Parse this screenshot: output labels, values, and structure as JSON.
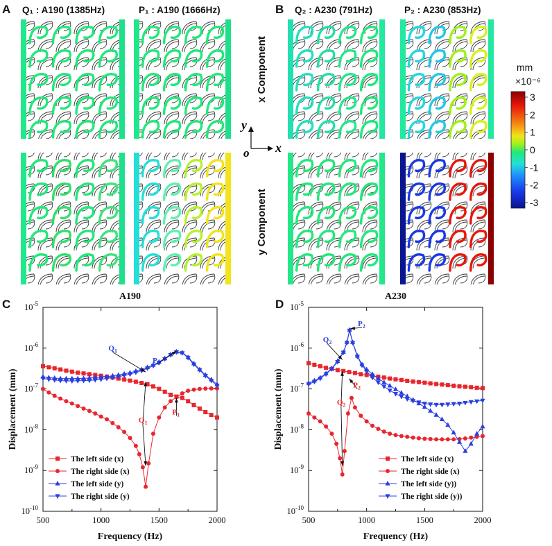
{
  "panels": {
    "A": {
      "letter": "A",
      "q_title": "Q₁ :  A190 (1385Hz)",
      "p_title": "P₁ : A190 (1666Hz)"
    },
    "B": {
      "letter": "B",
      "q_title": "Q₂ :  A230 (791Hz)",
      "p_title": "P₂ :  A230 (853Hz)"
    },
    "x_component": "x Component",
    "y_component": "y Component"
  },
  "axes_glyph": {
    "y": "y",
    "o": "o",
    "x": "x"
  },
  "colorbar": {
    "unit": "mm",
    "scale": "×10⁻⁶",
    "ticks": [
      "3",
      "2",
      "1",
      "0",
      "-1",
      "-2",
      "-3"
    ],
    "colors": [
      "#8b0000",
      "#e8170b",
      "#f58a12",
      "#f2e41a",
      "#9ff21a",
      "#22e87a",
      "#22e0d8",
      "#1e90ff",
      "#1838e8",
      "#0a1590"
    ]
  },
  "chart_data": [
    {
      "panel": "C",
      "type": "line",
      "title": "A190",
      "xlabel": "Frequency (Hz)",
      "ylabel": "Displacement (mm)",
      "xlim": [
        500,
        2000
      ],
      "ylim": [
        1e-10,
        1e-05
      ],
      "yscale": "log",
      "xticks": [
        "500",
        "1000",
        "1500",
        "2000"
      ],
      "yticks": [
        {
          "v": 1e-10,
          "e": "-10"
        },
        {
          "v": 1e-09,
          "e": "-9"
        },
        {
          "v": 1e-08,
          "e": "-8"
        },
        {
          "v": 1e-07,
          "e": "-7"
        },
        {
          "v": 1e-06,
          "e": "-6"
        },
        {
          "v": 1e-05,
          "e": "-5"
        }
      ],
      "series": [
        {
          "name": "The left side (x)",
          "color": "#e8262d",
          "marker": "square",
          "x": [
            500,
            550,
            600,
            650,
            700,
            750,
            800,
            850,
            900,
            950,
            1000,
            1050,
            1100,
            1150,
            1200,
            1250,
            1300,
            1350,
            1400,
            1450,
            1500,
            1550,
            1600,
            1650,
            1700,
            1750,
            1800,
            1850,
            1900,
            1950,
            2000
          ],
          "y": [
            3.6e-07,
            3.4e-07,
            3.2e-07,
            3e-07,
            2.8e-07,
            2.65e-07,
            2.5e-07,
            2.4e-07,
            2.3e-07,
            2.2e-07,
            2.1e-07,
            2e-07,
            1.9e-07,
            1.8e-07,
            1.7e-07,
            1.6e-07,
            1.5e-07,
            1.4e-07,
            1.3e-07,
            1.15e-07,
            1e-07,
            8.5e-08,
            7.2e-08,
            6.5e-08,
            6e-08,
            5e-08,
            4e-08,
            3.3e-08,
            2.7e-08,
            2.3e-08,
            2e-08
          ]
        },
        {
          "name": "The right side (x)",
          "color": "#e8262d",
          "marker": "circle",
          "x": [
            500,
            550,
            600,
            650,
            700,
            750,
            800,
            850,
            900,
            950,
            1000,
            1050,
            1100,
            1150,
            1200,
            1250,
            1300,
            1330,
            1360,
            1385,
            1410,
            1450,
            1500,
            1550,
            1600,
            1650,
            1700,
            1750,
            1800,
            1850,
            1900,
            1950,
            2000
          ],
          "y": [
            1e-07,
            8.2e-08,
            6.8e-08,
            5.8e-08,
            5e-08,
            4.4e-08,
            3.8e-08,
            3.3e-08,
            2.9e-08,
            2.5e-08,
            2.1e-08,
            1.8e-08,
            1.45e-08,
            1.15e-08,
            8.8e-09,
            6.3e-09,
            4e-09,
            2.5e-09,
            1.2e-09,
            4e-10,
            1.5e-09,
            8e-09,
            2e-08,
            3.5e-08,
            5e-08,
            6.3e-08,
            7.8e-08,
            9e-08,
            9.6e-08,
            1e-07,
            1.02e-07,
            1.03e-07,
            1.03e-07
          ]
        },
        {
          "name": "The left side (y)",
          "color": "#2b3fe0",
          "marker": "triangle-up",
          "x": [
            500,
            550,
            600,
            650,
            700,
            750,
            800,
            850,
            900,
            950,
            1000,
            1050,
            1100,
            1150,
            1200,
            1250,
            1300,
            1350,
            1400,
            1450,
            1500,
            1550,
            1600,
            1650,
            1700,
            1750,
            1800,
            1850,
            1900,
            1950,
            2000
          ],
          "y": [
            2e-07,
            1.9e-07,
            1.85e-07,
            1.8e-07,
            1.8e-07,
            1.8e-07,
            1.8e-07,
            1.82e-07,
            1.85e-07,
            1.9e-07,
            1.95e-07,
            2e-07,
            2.1e-07,
            2.2e-07,
            2.35e-07,
            2.5e-07,
            2.75e-07,
            3e-07,
            3.4e-07,
            3.9e-07,
            4.6e-07,
            5.6e-07,
            7e-07,
            8.2e-07,
            7.8e-07,
            6e-07,
            4.2e-07,
            3e-07,
            2.2e-07,
            1.7e-07,
            1.3e-07
          ]
        },
        {
          "name": "The right side (y)",
          "color": "#2b3fe0",
          "marker": "triangle-down",
          "x": [
            500,
            550,
            600,
            650,
            700,
            750,
            800,
            850,
            900,
            950,
            1000,
            1050,
            1100,
            1150,
            1200,
            1250,
            1300,
            1350,
            1400,
            1450,
            1500,
            1550,
            1600,
            1650,
            1700,
            1750,
            1800,
            1850,
            1900,
            1950,
            2000
          ],
          "y": [
            1.8e-07,
            1.72e-07,
            1.65e-07,
            1.6e-07,
            1.58e-07,
            1.57e-07,
            1.58e-07,
            1.6e-07,
            1.62e-07,
            1.66e-07,
            1.72e-07,
            1.8e-07,
            1.9e-07,
            2e-07,
            2.15e-07,
            2.3e-07,
            2.55e-07,
            2.8e-07,
            3.2e-07,
            3.7e-07,
            4.4e-07,
            5.4e-07,
            6.8e-07,
            8e-07,
            7.6e-07,
            5.8e-07,
            4e-07,
            2.9e-07,
            2.1e-07,
            1.6e-07,
            1.2e-07
          ]
        }
      ],
      "annotations": [
        {
          "label": "Q",
          "sub": "1",
          "color": "blue",
          "lx": 1100,
          "ly": 8e-07,
          "ax": 1385,
          "ay": 2.6e-07
        },
        {
          "label": "P",
          "sub": "1",
          "color": "blue",
          "lx": 1480,
          "ly": 4e-07,
          "ax": 1650,
          "ay": 8.5e-07
        },
        {
          "label": "Q",
          "sub": "1",
          "color": "red",
          "lx": 1360,
          "ly": 1.4e-08,
          "ax": 1385,
          "ay": 1.5e-07
        },
        {
          "label": "Q",
          "sub": "1",
          "color": "black",
          "lx": 1360,
          "ly": 1.4e-08,
          "ax": 1385,
          "ay": 1.3e-09
        },
        {
          "label": "P",
          "sub": "1",
          "color": "red",
          "lx": 1650,
          "ly": 2.2e-08,
          "ax": 1650,
          "ay": 6e-08
        }
      ],
      "legend_pos": "bottom-left"
    },
    {
      "panel": "D",
      "type": "line",
      "title": "A230",
      "xlabel": "Frequency (Hz)",
      "ylabel": "Displacement (mm)",
      "xlim": [
        500,
        2000
      ],
      "ylim": [
        1e-10,
        1e-05
      ],
      "yscale": "log",
      "xticks": [
        "500",
        "1000",
        "1500",
        "2000"
      ],
      "yticks": [
        {
          "v": 1e-10,
          "e": "-10"
        },
        {
          "v": 1e-09,
          "e": "-9"
        },
        {
          "v": 1e-08,
          "e": "-8"
        },
        {
          "v": 1e-07,
          "e": "-7"
        },
        {
          "v": 1e-06,
          "e": "-6"
        },
        {
          "v": 1e-05,
          "e": "-5"
        }
      ],
      "series": [
        {
          "name": "The left side (x)",
          "color": "#e8262d",
          "marker": "square",
          "x": [
            500,
            550,
            600,
            650,
            700,
            750,
            800,
            850,
            900,
            950,
            1000,
            1050,
            1100,
            1150,
            1200,
            1250,
            1300,
            1350,
            1400,
            1450,
            1500,
            1550,
            1600,
            1650,
            1700,
            1750,
            1800,
            1850,
            1900,
            1950,
            2000
          ],
          "y": [
            4.3e-07,
            3.9e-07,
            3.6e-07,
            3.3e-07,
            3.1e-07,
            2.9e-07,
            2.75e-07,
            2.6e-07,
            2.45e-07,
            2.3e-07,
            2.2e-07,
            2.1e-07,
            2e-07,
            1.9e-07,
            1.8e-07,
            1.72e-07,
            1.65e-07,
            1.58e-07,
            1.52e-07,
            1.47e-07,
            1.42e-07,
            1.37e-07,
            1.32e-07,
            1.28e-07,
            1.24e-07,
            1.2e-07,
            1.16e-07,
            1.13e-07,
            1.1e-07,
            1.07e-07,
            1.05e-07
          ]
        },
        {
          "name": "The right side (x)",
          "color": "#e8262d",
          "marker": "circle",
          "x": [
            500,
            550,
            600,
            650,
            700,
            740,
            770,
            791,
            810,
            840,
            870,
            900,
            950,
            1000,
            1050,
            1100,
            1150,
            1200,
            1250,
            1300,
            1350,
            1400,
            1450,
            1500,
            1550,
            1600,
            1650,
            1700,
            1750,
            1800,
            1850,
            1900,
            1950,
            2000
          ],
          "y": [
            2.5e-08,
            2e-08,
            1.6e-08,
            1.2e-08,
            8e-09,
            4.5e-09,
            2e-09,
            8e-10,
            3e-09,
            2.5e-08,
            6e-08,
            3.5e-08,
            2.2e-08,
            1.6e-08,
            1.25e-08,
            1.05e-08,
            9e-09,
            8e-09,
            7.4e-09,
            7e-09,
            6.7e-09,
            6.4e-09,
            6.2e-09,
            6e-09,
            5.9e-09,
            5.8e-09,
            5.8e-09,
            5.8e-09,
            5.8e-09,
            5.9e-09,
            6.1e-09,
            6.4e-09,
            6.7e-09,
            7e-09
          ]
        },
        {
          "name": "The left side (y))",
          "color": "#2b3fe0",
          "marker": "triangle-up",
          "x": [
            500,
            550,
            600,
            650,
            700,
            750,
            800,
            830,
            853,
            880,
            920,
            960,
            1000,
            1050,
            1100,
            1150,
            1200,
            1250,
            1300,
            1350,
            1400,
            1450,
            1500,
            1550,
            1600,
            1650,
            1700,
            1750,
            1800,
            1850,
            1900,
            1950,
            2000
          ],
          "y": [
            1.4e-07,
            1.6e-07,
            1.9e-07,
            2.4e-07,
            3.2e-07,
            4.8e-07,
            8e-07,
            1.4e-06,
            2.8e-06,
            1.4e-06,
            6.5e-07,
            4e-07,
            3e-07,
            2.3e-07,
            1.8e-07,
            1.45e-07,
            1.2e-07,
            9.8e-08,
            8e-08,
            6.6e-08,
            5.4e-08,
            4.4e-08,
            3.6e-08,
            2.9e-08,
            2.3e-08,
            1.8e-08,
            1.3e-08,
            8.5e-09,
            5e-09,
            3e-09,
            4.5e-09,
            8e-09,
            1.2e-08
          ]
        },
        {
          "name": "The right side (y))",
          "color": "#2b3fe0",
          "marker": "triangle-down",
          "x": [
            500,
            550,
            600,
            650,
            700,
            750,
            800,
            830,
            853,
            880,
            920,
            960,
            1000,
            1050,
            1100,
            1150,
            1200,
            1250,
            1300,
            1350,
            1400,
            1450,
            1500,
            1550,
            1600,
            1650,
            1700,
            1750,
            1800,
            1850,
            1900,
            1950,
            2000
          ],
          "y": [
            1.3e-07,
            1.5e-07,
            1.8e-07,
            2.3e-07,
            3.1e-07,
            4.6e-07,
            7.8e-07,
            1.35e-06,
            2.7e-06,
            1.35e-06,
            6.2e-07,
            3.8e-07,
            2.7e-07,
            1.9e-07,
            1.45e-07,
            1.15e-07,
            9.2e-08,
            7.6e-08,
            6.5e-08,
            5.7e-08,
            5.1e-08,
            4.7e-08,
            4.4e-08,
            4.2e-08,
            4.1e-08,
            4.1e-08,
            4.2e-08,
            4.3e-08,
            4.4e-08,
            4.6e-08,
            4.8e-08,
            5e-08,
            5.2e-08
          ]
        }
      ],
      "annotations": [
        {
          "label": "P",
          "sub": "2",
          "color": "blue",
          "lx": 960,
          "ly": 3.2e-06,
          "ax": 860,
          "ay": 3e-06
        },
        {
          "label": "Q",
          "sub": "2",
          "color": "blue",
          "lx": 660,
          "ly": 1.3e-06,
          "ax": 791,
          "ay": 5.2e-07
        },
        {
          "label": "P",
          "sub": "2",
          "color": "red",
          "lx": 920,
          "ly": 1e-07,
          "ax": 850,
          "ay": 1.8e-07
        },
        {
          "label": "Q",
          "sub": "2",
          "color": "red",
          "lx": 780,
          "ly": 3.8e-08,
          "ax": 791,
          "ay": 2.7e-07
        },
        {
          "label": "Q",
          "sub": "2",
          "color": "black",
          "lx": 780,
          "ly": 3.8e-08,
          "ax": 791,
          "ay": 1.3e-09
        }
      ],
      "legend_pos": "bottom-right"
    }
  ]
}
